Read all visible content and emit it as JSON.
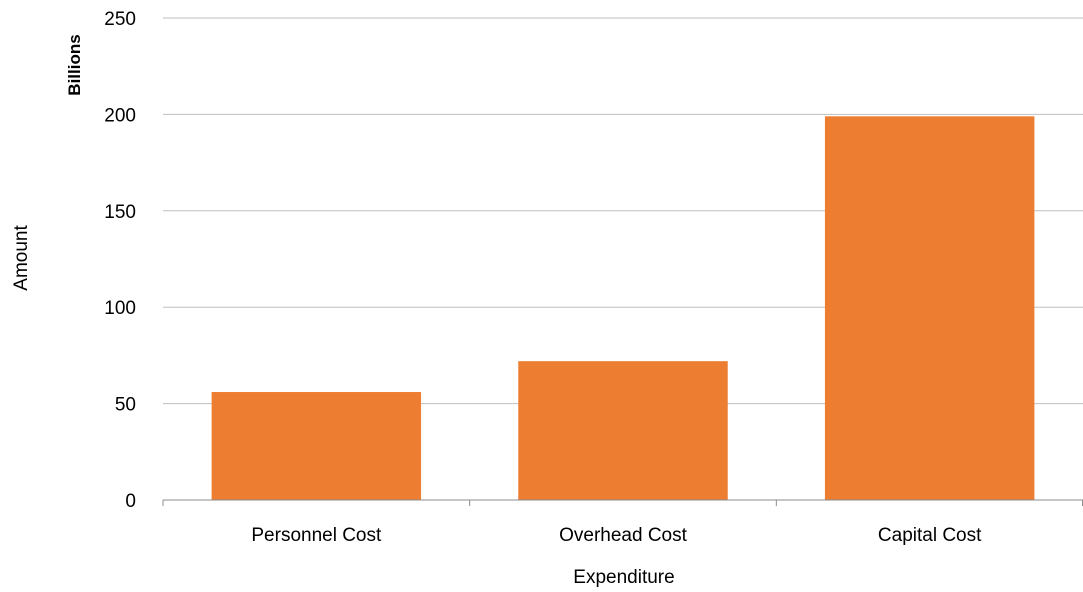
{
  "chart_data": {
    "type": "bar",
    "categories": [
      "Personnel Cost",
      "Overhead Cost",
      "Capital Cost"
    ],
    "values": [
      56,
      72,
      199
    ],
    "xlabel": "Expenditure",
    "ylabel": "Amount",
    "y_units_label": "Billions",
    "ylim": [
      0,
      250
    ],
    "y_ticks": [
      0,
      50,
      100,
      150,
      200,
      250
    ],
    "grid": "horizontal",
    "legend": "none",
    "colors": {
      "bar": "#ED7D31",
      "grid": "#BFBFBF",
      "axis": "#8C8C8C"
    }
  }
}
